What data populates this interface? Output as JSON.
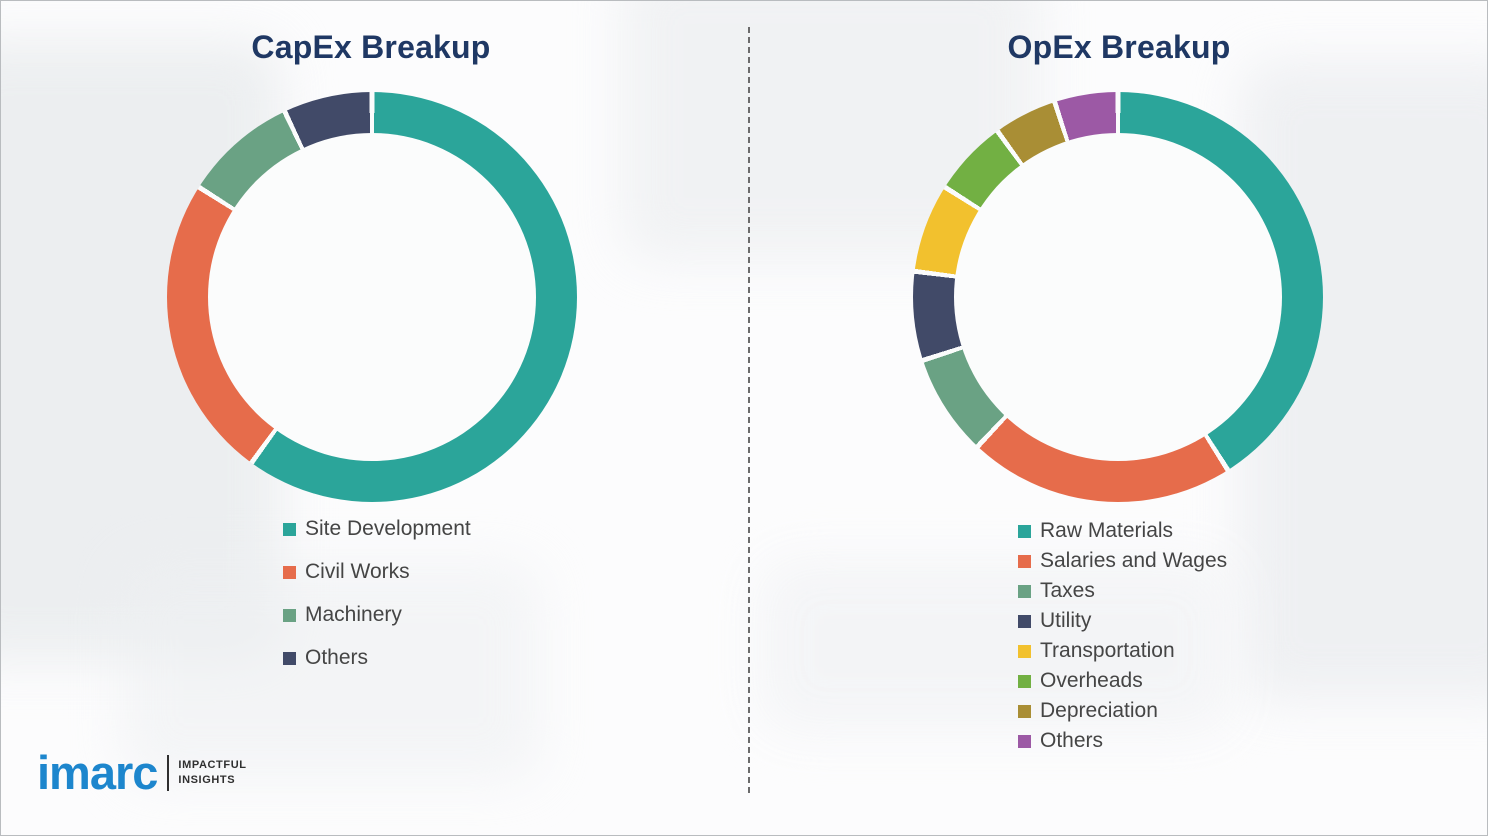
{
  "chart_data": [
    {
      "type": "pie",
      "donut": true,
      "title": "CapEx Breakup",
      "labels": [
        "Site Development",
        "Civil Works",
        "Machinery",
        "Others"
      ],
      "values": [
        60,
        24,
        9,
        7
      ],
      "colors": [
        "#2ba59a",
        "#e66c4b",
        "#6aa284",
        "#414a68"
      ],
      "legend_position": "bottom",
      "hole_ratio": 0.8
    },
    {
      "type": "pie",
      "donut": true,
      "title": "OpEx Breakup",
      "labels": [
        "Raw Materials",
        "Salaries and Wages",
        "Taxes",
        "Utility",
        "Transportation",
        "Overheads",
        "Depreciation",
        "Others"
      ],
      "values": [
        41,
        21,
        8,
        7,
        7,
        6,
        5,
        5
      ],
      "colors": [
        "#2ba59a",
        "#e66c4b",
        "#6aa284",
        "#414a68",
        "#f2c12e",
        "#72b043",
        "#a98e35",
        "#9c59a5"
      ],
      "legend_position": "bottom",
      "hole_ratio": 0.8
    }
  ],
  "logo": {
    "text": "imarc",
    "tagline_line1": "IMPACTFUL",
    "tagline_line2": "INSIGHTS"
  },
  "colors": {
    "title": "#1f3864",
    "legend_text": "#454545",
    "logo_blue": "#1d86cd"
  }
}
